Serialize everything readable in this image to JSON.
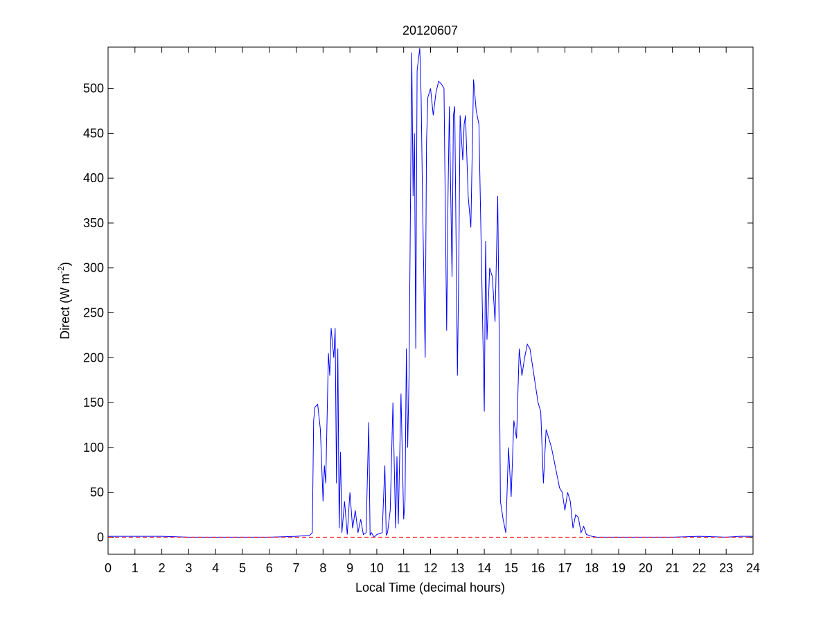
{
  "chart_data": {
    "type": "line",
    "title": "20120607",
    "xlabel": "Local Time (decimal hours)",
    "ylabel": {
      "text": "Direct (W m",
      "superscript": "-2",
      "suffix": ")"
    },
    "xlim": [
      0,
      24
    ],
    "ylim": [
      -19,
      546
    ],
    "xticks": [
      0,
      1,
      2,
      3,
      4,
      5,
      6,
      7,
      8,
      9,
      10,
      11,
      12,
      13,
      14,
      15,
      16,
      17,
      18,
      19,
      20,
      21,
      22,
      23,
      24
    ],
    "yticks": [
      0,
      50,
      100,
      150,
      200,
      250,
      300,
      350,
      400,
      450,
      500
    ],
    "series": [
      {
        "color": "#0000ff",
        "dash": false,
        "x": [
          0,
          1,
          2,
          3,
          4,
          5,
          6,
          7,
          7.5,
          7.6,
          7.65,
          7.7,
          7.8,
          7.9,
          8.0,
          8.05,
          8.1,
          8.2,
          8.25,
          8.3,
          8.4,
          8.45,
          8.5,
          8.55,
          8.6,
          8.65,
          8.7,
          8.8,
          8.9,
          9.0,
          9.1,
          9.2,
          9.3,
          9.4,
          9.5,
          9.6,
          9.7,
          9.75,
          9.8,
          9.9,
          10.0,
          10.2,
          10.3,
          10.35,
          10.4,
          10.5,
          10.6,
          10.7,
          10.75,
          10.8,
          10.9,
          11.0,
          11.05,
          11.1,
          11.15,
          11.2,
          11.3,
          11.35,
          11.4,
          11.45,
          11.5,
          11.6,
          11.65,
          11.7,
          11.8,
          11.85,
          11.9,
          12.0,
          12.1,
          12.2,
          12.3,
          12.4,
          12.5,
          12.6,
          12.65,
          12.7,
          12.8,
          12.85,
          12.9,
          13.0,
          13.05,
          13.1,
          13.2,
          13.25,
          13.3,
          13.4,
          13.5,
          13.6,
          13.7,
          13.8,
          13.9,
          14.0,
          14.05,
          14.1,
          14.2,
          14.3,
          14.4,
          14.5,
          14.55,
          14.6,
          14.7,
          14.8,
          14.9,
          15.0,
          15.1,
          15.2,
          15.3,
          15.4,
          15.5,
          15.6,
          15.7,
          15.8,
          15.9,
          16.0,
          16.1,
          16.2,
          16.3,
          16.35,
          16.4,
          16.5,
          16.6,
          16.7,
          16.8,
          16.9,
          17.0,
          17.1,
          17.2,
          17.3,
          17.4,
          17.5,
          17.6,
          17.7,
          17.8,
          17.9,
          18.0,
          18.2,
          19,
          20,
          21,
          22,
          23,
          23.5,
          24
        ],
        "values": [
          1,
          1,
          1,
          0,
          0,
          0,
          0,
          1,
          2,
          5,
          130,
          145,
          148,
          120,
          40,
          80,
          60,
          205,
          180,
          233,
          200,
          233,
          60,
          210,
          10,
          95,
          5,
          40,
          3,
          50,
          10,
          30,
          5,
          20,
          3,
          5,
          128,
          2,
          5,
          0,
          3,
          5,
          80,
          2,
          5,
          30,
          150,
          10,
          90,
          15,
          160,
          20,
          40,
          210,
          100,
          180,
          540,
          380,
          450,
          210,
          520,
          545,
          490,
          380,
          200,
          440,
          490,
          500,
          470,
          495,
          508,
          505,
          500,
          230,
          380,
          480,
          290,
          470,
          480,
          180,
          300,
          470,
          420,
          460,
          470,
          380,
          345,
          510,
          475,
          460,
          300,
          140,
          330,
          220,
          300,
          290,
          240,
          380,
          240,
          40,
          20,
          5,
          100,
          45,
          130,
          110,
          210,
          180,
          200,
          215,
          210,
          190,
          170,
          150,
          140,
          60,
          120,
          115,
          110,
          100,
          85,
          70,
          55,
          50,
          30,
          50,
          40,
          10,
          25,
          22,
          5,
          12,
          3,
          2,
          1,
          0,
          0,
          0,
          0,
          1,
          0,
          1,
          1
        ]
      },
      {
        "color": "#ff0000",
        "dash": true,
        "x": [
          0,
          24
        ],
        "values": [
          0,
          0
        ]
      }
    ]
  }
}
